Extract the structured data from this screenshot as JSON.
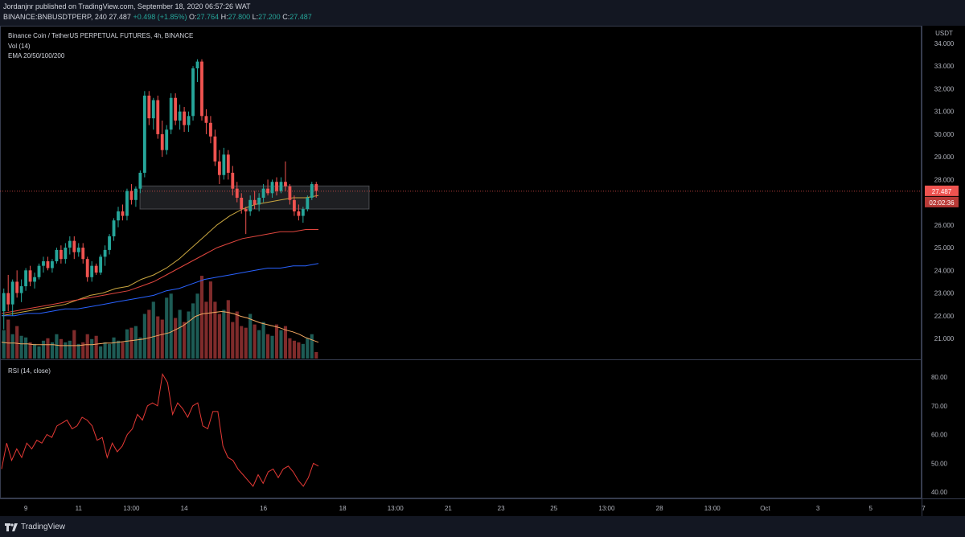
{
  "header": {
    "published_line": "Jordanjnr published on TradingView.com, September 18, 2020 06:57:26 WAT",
    "symbol": "BINANCE:BNBUSDTPERP, 240",
    "last": "27.487",
    "change": "+0.498 (+1.85%)",
    "o_label": "O:",
    "o": "27.764",
    "h_label": "H:",
    "h": "27.800",
    "l_label": "L:",
    "l": "27.200",
    "c_label": "C:",
    "c": "27.487"
  },
  "legend": {
    "title": "Binance Coin / TetherUS PERPETUAL FUTURES, 4h, BINANCE",
    "vol": "Vol (14)",
    "ema": "EMA 20/50/100/200",
    "rsi": "RSI (14, close)"
  },
  "footer": {
    "brand": "TradingView"
  },
  "colors": {
    "up": "#26a69a",
    "down": "#ef5350",
    "ema20": "#c9a640",
    "ema50": "#e0463e",
    "ema100": "#2962ff",
    "rsi": "#e53935",
    "vol_ma": "#f5a962"
  },
  "chart_data": {
    "type": "candlestick",
    "price_axis": {
      "unit": "USDT",
      "ticks": [
        21,
        22,
        23,
        24,
        25,
        26,
        27,
        28,
        29,
        30,
        31,
        32,
        33,
        34
      ],
      "tick_labels": [
        "21.000",
        "22.000",
        "23.000",
        "24.000",
        "25.000",
        "26.000",
        "27.000",
        "28.000",
        "29.000",
        "30.000",
        "31.000",
        "32.000",
        "33.000",
        "34.000"
      ],
      "last_price_label": "27.487",
      "countdown_label": "02:02:36"
    },
    "rsi_axis": {
      "ticks": [
        40,
        50,
        60,
        70,
        80
      ],
      "tick_labels": [
        "40.00",
        "50.00",
        "60.00",
        "70.00",
        "80.00"
      ]
    },
    "time_axis": {
      "labels": [
        "9",
        "11",
        "13:00",
        "14",
        "16",
        "18",
        "13:00",
        "21",
        "23",
        "25",
        "13:00",
        "28",
        "13:00",
        "Oct",
        "3",
        "5",
        "7"
      ],
      "label_bar_index": [
        5,
        17,
        29,
        41,
        59,
        77,
        89,
        101,
        113,
        125,
        137,
        149,
        161,
        173,
        185,
        197,
        209
      ]
    },
    "resistance_zone": {
      "from_price": 26.7,
      "to_price": 27.72,
      "start_bar": 34,
      "end_bar": 88
    },
    "candles": [
      {
        "o": 22.2,
        "h": 23.2,
        "l": 21.4,
        "c": 23.0
      },
      {
        "o": 23.0,
        "h": 23.8,
        "l": 22.2,
        "c": 22.5
      },
      {
        "o": 22.5,
        "h": 23.6,
        "l": 22.0,
        "c": 23.5
      },
      {
        "o": 23.5,
        "h": 24.0,
        "l": 22.8,
        "c": 23.0
      },
      {
        "o": 23.0,
        "h": 23.6,
        "l": 22.6,
        "c": 23.3
      },
      {
        "o": 23.3,
        "h": 24.1,
        "l": 23.1,
        "c": 24.0
      },
      {
        "o": 24.0,
        "h": 24.2,
        "l": 23.3,
        "c": 23.5
      },
      {
        "o": 23.5,
        "h": 23.9,
        "l": 23.2,
        "c": 23.7
      },
      {
        "o": 23.7,
        "h": 24.3,
        "l": 23.6,
        "c": 24.2
      },
      {
        "o": 24.2,
        "h": 24.6,
        "l": 23.9,
        "c": 24.4
      },
      {
        "o": 24.4,
        "h": 24.6,
        "l": 24.0,
        "c": 24.1
      },
      {
        "o": 24.1,
        "h": 24.5,
        "l": 23.9,
        "c": 24.4
      },
      {
        "o": 24.4,
        "h": 25.0,
        "l": 24.3,
        "c": 24.9
      },
      {
        "o": 24.9,
        "h": 25.1,
        "l": 24.3,
        "c": 24.5
      },
      {
        "o": 24.5,
        "h": 25.2,
        "l": 24.3,
        "c": 25.0
      },
      {
        "o": 25.0,
        "h": 25.5,
        "l": 24.7,
        "c": 25.3
      },
      {
        "o": 25.3,
        "h": 25.5,
        "l": 24.5,
        "c": 24.8
      },
      {
        "o": 24.8,
        "h": 25.2,
        "l": 24.6,
        "c": 25.0
      },
      {
        "o": 25.0,
        "h": 25.2,
        "l": 24.3,
        "c": 24.5
      },
      {
        "o": 24.5,
        "h": 24.6,
        "l": 23.5,
        "c": 23.7
      },
      {
        "o": 23.7,
        "h": 24.4,
        "l": 23.5,
        "c": 24.2
      },
      {
        "o": 24.2,
        "h": 24.3,
        "l": 23.8,
        "c": 23.9
      },
      {
        "o": 23.9,
        "h": 24.7,
        "l": 23.8,
        "c": 24.6
      },
      {
        "o": 24.6,
        "h": 25.1,
        "l": 24.2,
        "c": 24.9
      },
      {
        "o": 24.9,
        "h": 25.6,
        "l": 24.7,
        "c": 25.5
      },
      {
        "o": 25.5,
        "h": 26.3,
        "l": 25.3,
        "c": 26.2
      },
      {
        "o": 26.2,
        "h": 26.8,
        "l": 25.9,
        "c": 26.6
      },
      {
        "o": 26.6,
        "h": 26.9,
        "l": 26.2,
        "c": 26.4
      },
      {
        "o": 26.4,
        "h": 27.6,
        "l": 26.2,
        "c": 27.5
      },
      {
        "o": 27.5,
        "h": 27.8,
        "l": 26.9,
        "c": 27.1
      },
      {
        "o": 27.1,
        "h": 27.7,
        "l": 26.8,
        "c": 27.6
      },
      {
        "o": 27.6,
        "h": 28.4,
        "l": 27.4,
        "c": 28.3
      },
      {
        "o": 28.3,
        "h": 31.9,
        "l": 28.1,
        "c": 31.7
      },
      {
        "o": 31.7,
        "h": 31.9,
        "l": 30.4,
        "c": 30.7
      },
      {
        "o": 30.7,
        "h": 31.6,
        "l": 30.2,
        "c": 31.5
      },
      {
        "o": 31.5,
        "h": 31.7,
        "l": 29.8,
        "c": 30.0
      },
      {
        "o": 30.0,
        "h": 30.6,
        "l": 29.0,
        "c": 29.3
      },
      {
        "o": 29.3,
        "h": 30.4,
        "l": 29.1,
        "c": 30.2
      },
      {
        "o": 30.2,
        "h": 31.8,
        "l": 30.0,
        "c": 31.6
      },
      {
        "o": 31.6,
        "h": 31.8,
        "l": 30.4,
        "c": 30.6
      },
      {
        "o": 30.6,
        "h": 31.3,
        "l": 30.2,
        "c": 31.0
      },
      {
        "o": 31.0,
        "h": 31.2,
        "l": 30.1,
        "c": 30.4
      },
      {
        "o": 30.4,
        "h": 31.0,
        "l": 30.1,
        "c": 30.8
      },
      {
        "o": 30.8,
        "h": 33.0,
        "l": 30.6,
        "c": 32.9
      },
      {
        "o": 32.9,
        "h": 33.3,
        "l": 32.3,
        "c": 33.2
      },
      {
        "o": 33.2,
        "h": 33.3,
        "l": 30.6,
        "c": 30.8
      },
      {
        "o": 30.8,
        "h": 31.1,
        "l": 30.0,
        "c": 30.5
      },
      {
        "o": 30.5,
        "h": 30.8,
        "l": 29.6,
        "c": 29.9
      },
      {
        "o": 29.9,
        "h": 30.2,
        "l": 28.6,
        "c": 28.8
      },
      {
        "o": 28.8,
        "h": 29.3,
        "l": 27.8,
        "c": 28.2
      },
      {
        "o": 28.2,
        "h": 29.4,
        "l": 28.0,
        "c": 29.1
      },
      {
        "o": 29.1,
        "h": 29.3,
        "l": 28.0,
        "c": 28.3
      },
      {
        "o": 28.3,
        "h": 28.6,
        "l": 27.3,
        "c": 27.6
      },
      {
        "o": 27.6,
        "h": 27.9,
        "l": 27.0,
        "c": 27.2
      },
      {
        "o": 27.2,
        "h": 27.4,
        "l": 26.5,
        "c": 26.7
      },
      {
        "o": 26.7,
        "h": 26.8,
        "l": 25.6,
        "c": 26.6
      },
      {
        "o": 26.6,
        "h": 27.3,
        "l": 26.4,
        "c": 27.1
      },
      {
        "o": 27.1,
        "h": 27.5,
        "l": 26.7,
        "c": 26.9
      },
      {
        "o": 26.9,
        "h": 27.4,
        "l": 26.6,
        "c": 27.2
      },
      {
        "o": 27.2,
        "h": 27.8,
        "l": 27.0,
        "c": 27.6
      },
      {
        "o": 27.6,
        "h": 28.0,
        "l": 27.3,
        "c": 27.4
      },
      {
        "o": 27.4,
        "h": 28.0,
        "l": 27.2,
        "c": 27.9
      },
      {
        "o": 27.9,
        "h": 28.1,
        "l": 27.3,
        "c": 27.5
      },
      {
        "o": 27.5,
        "h": 28.1,
        "l": 27.4,
        "c": 27.9
      },
      {
        "o": 27.9,
        "h": 28.8,
        "l": 27.5,
        "c": 27.7
      },
      {
        "o": 27.7,
        "h": 27.8,
        "l": 26.9,
        "c": 27.1
      },
      {
        "o": 27.1,
        "h": 27.3,
        "l": 26.4,
        "c": 26.6
      },
      {
        "o": 26.6,
        "h": 26.9,
        "l": 26.2,
        "c": 26.4
      },
      {
        "o": 26.4,
        "h": 26.8,
        "l": 26.1,
        "c": 26.7
      },
      {
        "o": 26.7,
        "h": 27.3,
        "l": 26.6,
        "c": 27.2
      },
      {
        "o": 27.2,
        "h": 27.9,
        "l": 27.1,
        "c": 27.8
      },
      {
        "o": 27.8,
        "h": 27.9,
        "l": 27.2,
        "c": 27.5
      }
    ],
    "ema_series": [
      {
        "label": "EMA 20",
        "values": [
          22.0,
          22.1,
          22.2,
          22.3,
          22.4,
          22.5,
          22.7,
          22.9,
          23.0,
          23.2,
          23.3,
          23.6,
          23.8,
          24.1,
          24.5,
          25.0,
          25.5,
          26.0,
          26.4,
          26.7,
          26.9,
          27.0,
          27.1,
          27.2,
          27.2,
          27.3
        ]
      },
      {
        "label": "EMA 50",
        "values": [
          22.1,
          22.2,
          22.3,
          22.4,
          22.5,
          22.6,
          22.7,
          22.8,
          22.9,
          23.0,
          23.1,
          23.3,
          23.5,
          23.8,
          24.1,
          24.4,
          24.7,
          25.0,
          25.2,
          25.4,
          25.5,
          25.6,
          25.7,
          25.7,
          25.8,
          25.8
        ]
      },
      {
        "label": "EMA 100",
        "values": [
          22.0,
          22.0,
          22.1,
          22.1,
          22.2,
          22.3,
          22.3,
          22.4,
          22.5,
          22.6,
          22.7,
          22.8,
          22.9,
          23.1,
          23.2,
          23.4,
          23.6,
          23.7,
          23.8,
          23.9,
          24.0,
          24.1,
          24.1,
          24.2,
          24.2,
          24.3
        ]
      }
    ],
    "volume_max": 110,
    "volume": [
      35,
      48,
      30,
      40,
      28,
      26,
      20,
      18,
      15,
      22,
      25,
      20,
      30,
      24,
      20,
      22,
      35,
      18,
      20,
      30,
      24,
      28,
      15,
      20,
      18,
      26,
      22,
      20,
      36,
      38,
      40,
      26,
      55,
      60,
      70,
      52,
      48,
      75,
      80,
      50,
      60,
      45,
      58,
      68,
      80,
      102,
      70,
      95,
      70,
      55,
      60,
      72,
      45,
      58,
      40,
      38,
      55,
      42,
      35,
      45,
      30,
      28,
      42,
      35,
      40,
      25,
      22,
      20,
      18,
      25,
      30,
      8
    ],
    "volume_ma": [
      20,
      19,
      19,
      18,
      18,
      17,
      17,
      17,
      17,
      16,
      16,
      16,
      16,
      17,
      17,
      18,
      19,
      19,
      20,
      21,
      22,
      23,
      24,
      26,
      28,
      30,
      32,
      36,
      40,
      46,
      52,
      55,
      56,
      57,
      58,
      57,
      55,
      52,
      50,
      47,
      44,
      42,
      40,
      38,
      35,
      33,
      30,
      26,
      23,
      20
    ],
    "rsi": [
      48,
      57,
      51,
      55,
      52,
      57,
      55,
      58,
      57,
      60,
      59,
      63,
      64,
      65,
      62,
      63,
      66,
      65,
      63,
      58,
      59,
      52,
      57,
      54,
      56,
      60,
      62,
      67,
      65,
      70,
      71,
      70,
      81,
      78,
      67,
      71,
      69,
      66,
      70,
      71,
      63,
      62,
      68,
      68,
      56,
      52,
      51,
      48,
      46,
      44,
      42,
      46,
      43,
      47,
      48,
      45,
      48,
      49,
      47,
      44,
      42,
      45,
      50,
      49
    ],
    "x_start": 2,
    "x_end": 396
  }
}
